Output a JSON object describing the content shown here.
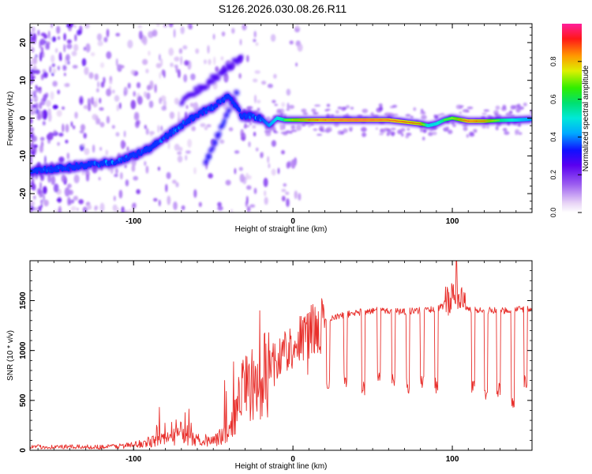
{
  "figure": {
    "title": "S126.2026.030.08.26.R11"
  },
  "colors": {
    "snr_line": "#e8302c",
    "axis": "#000000",
    "background": "#ffffff"
  },
  "chart_data": [
    {
      "type": "heatmap",
      "name": "spectrogram",
      "xlabel": "Height of straight line (km)",
      "ylabel": "Frequency (Hz)",
      "xlim": [
        -165,
        150
      ],
      "ylim": [
        -25,
        25
      ],
      "xticks": [
        -100,
        0,
        100
      ],
      "xtick_labels": [
        "-100",
        "0",
        "100"
      ],
      "yticks": [
        -20,
        -10,
        0,
        10,
        20
      ],
      "ytick_labels": [
        "-20",
        "-10",
        "0",
        "10",
        "20"
      ],
      "colorbar": {
        "label": "Normalized spectral amplitude",
        "ticks": [
          0.0,
          0.2,
          0.4,
          0.6,
          0.8
        ],
        "tick_labels": [
          "0.0",
          "0.2",
          "0.4",
          "0.6",
          "0.8"
        ],
        "range": [
          0,
          1
        ]
      },
      "ridge": {
        "description_values": "frequency (Hz) of the dominant ridge vs height (km)",
        "x": [
          -165,
          -150,
          -140,
          -130,
          -120,
          -110,
          -100,
          -90,
          -80,
          -70,
          -60,
          -50,
          -40,
          -32,
          -28,
          -20,
          -15,
          -10,
          -5,
          0,
          10,
          20,
          40,
          60,
          80,
          85,
          90,
          95,
          100,
          110,
          120,
          130,
          140,
          150
        ],
        "freq": [
          -14,
          -13.5,
          -13,
          -12.5,
          -12,
          -11.5,
          -10,
          -8,
          -5,
          -2,
          1,
          3,
          6,
          0.5,
          0.5,
          0,
          -2,
          0,
          -0.5,
          -0.5,
          -0.5,
          -0.5,
          -0.5,
          -0.5,
          -1.5,
          -2,
          -1.5,
          -0.5,
          0,
          -0.8,
          -0.8,
          -0.6,
          -0.5,
          -0.3
        ],
        "amplitude": [
          0.3,
          0.3,
          0.28,
          0.25,
          0.35,
          0.35,
          0.3,
          0.3,
          0.35,
          0.35,
          0.3,
          0.3,
          0.3,
          0.3,
          0.35,
          0.45,
          0.5,
          0.6,
          0.7,
          0.8,
          0.9,
          0.95,
          1.0,
          0.95,
          0.9,
          0.6,
          0.6,
          0.7,
          0.75,
          0.95,
          0.9,
          0.7,
          0.6,
          0.5
        ]
      }
    },
    {
      "type": "line",
      "name": "snr",
      "xlabel": "Height of straight line (km)",
      "ylabel": "SNR (10 * v/v)",
      "xlim": [
        -165,
        150
      ],
      "ylim": [
        0,
        1900
      ],
      "xticks": [
        -100,
        0,
        100
      ],
      "xtick_labels": [
        "-100",
        "0",
        "100"
      ],
      "yticks": [
        0,
        500,
        1000,
        1500
      ],
      "ytick_labels": [
        "0",
        "500",
        "1000",
        "1500"
      ],
      "envelope": {
        "x": [
          -165,
          -140,
          -120,
          -100,
          -90,
          -80,
          -70,
          -60,
          -50,
          -40,
          -35,
          -30,
          -25,
          -20,
          -15,
          -10,
          -5,
          0,
          5,
          10,
          20,
          30,
          40,
          50,
          60,
          70,
          80,
          90,
          100,
          110,
          120,
          130,
          140,
          150
        ],
        "y": [
          40,
          40,
          40,
          60,
          100,
          130,
          170,
          120,
          120,
          200,
          500,
          750,
          700,
          850,
          900,
          950,
          1020,
          1080,
          1150,
          1200,
          1290,
          1350,
          1380,
          1400,
          1400,
          1390,
          1400,
          1420,
          1480,
          1410,
          1400,
          1400,
          1410,
          1410
        ]
      },
      "dropouts": {
        "x": [
          22,
          33,
          44,
          54,
          63,
          72,
          81,
          90,
          113,
          121,
          129,
          138,
          146
        ],
        "y": [
          690,
          700,
          620,
          750,
          700,
          650,
          700,
          650,
          660,
          590,
          600,
          480,
          700
        ]
      }
    }
  ]
}
